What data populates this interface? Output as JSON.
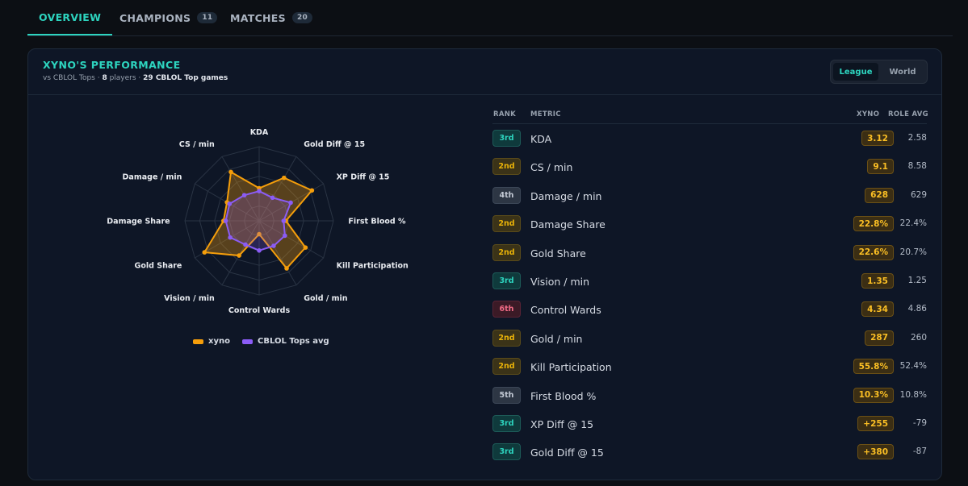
{
  "tabs": [
    {
      "label": "OVERVIEW",
      "count": null,
      "active": true
    },
    {
      "label": "CHAMPIONS",
      "count": "11",
      "active": false
    },
    {
      "label": "MATCHES",
      "count": "20",
      "active": false
    }
  ],
  "card": {
    "title": "XYNO'S PERFORMANCE",
    "subtitle": {
      "prefix": "vs CBLOL Tops · ",
      "players": "8",
      "players_suffix": " players · ",
      "games": "29 CBLOL Top games"
    },
    "toggle": {
      "selected": "League",
      "other": "World"
    }
  },
  "colors": {
    "accent": "#2dd4bf",
    "player": "#f59e0b",
    "role_avg": "#8b5cf6"
  },
  "chart_data": {
    "type": "radar",
    "axes": [
      "KDA",
      "Gold Diff @ 15",
      "XP Diff @ 15",
      "First Blood %",
      "Kill Participation",
      "Gold / min",
      "Control Wards",
      "Vision / min",
      "Gold Share",
      "Damage Share",
      "Damage / min",
      "CS / min"
    ],
    "series": [
      {
        "name": "xyno",
        "values": [
          0.44,
          0.67,
          0.82,
          0.36,
          0.72,
          0.74,
          0.18,
          0.54,
          0.85,
          0.48,
          0.5,
          0.76
        ]
      },
      {
        "name": "CBLOL Tops avg",
        "values": [
          0.4,
          0.36,
          0.49,
          0.33,
          0.4,
          0.39,
          0.4,
          0.37,
          0.45,
          0.45,
          0.46,
          0.4
        ]
      }
    ],
    "rings": 5,
    "legend_position": "bottom"
  },
  "table": {
    "headers": {
      "rank": "RANK",
      "metric": "METRIC",
      "player": "XYNO",
      "avg": "ROLE AVG"
    },
    "rows": [
      {
        "rank": "3rd",
        "tier": "teal",
        "metric": "KDA",
        "value": "3.12",
        "avg": "2.58"
      },
      {
        "rank": "2nd",
        "tier": "amber",
        "metric": "CS / min",
        "value": "9.1",
        "avg": "8.58"
      },
      {
        "rank": "4th",
        "tier": "gray",
        "metric": "Damage / min",
        "value": "628",
        "avg": "629"
      },
      {
        "rank": "2nd",
        "tier": "amber",
        "metric": "Damage Share",
        "value": "22.8%",
        "avg": "22.4%"
      },
      {
        "rank": "2nd",
        "tier": "amber",
        "metric": "Gold Share",
        "value": "22.6%",
        "avg": "20.7%"
      },
      {
        "rank": "3rd",
        "tier": "teal",
        "metric": "Vision / min",
        "value": "1.35",
        "avg": "1.25"
      },
      {
        "rank": "6th",
        "tier": "red",
        "metric": "Control Wards",
        "value": "4.34",
        "avg": "4.86"
      },
      {
        "rank": "2nd",
        "tier": "amber",
        "metric": "Gold / min",
        "value": "287",
        "avg": "260"
      },
      {
        "rank": "2nd",
        "tier": "amber",
        "metric": "Kill Participation",
        "value": "55.8%",
        "avg": "52.4%"
      },
      {
        "rank": "5th",
        "tier": "gray",
        "metric": "First Blood %",
        "value": "10.3%",
        "avg": "10.8%"
      },
      {
        "rank": "3rd",
        "tier": "teal",
        "metric": "XP Diff @ 15",
        "value": "+255",
        "avg": "-79"
      },
      {
        "rank": "3rd",
        "tier": "teal",
        "metric": "Gold Diff @ 15",
        "value": "+380",
        "avg": "-87"
      }
    ]
  }
}
